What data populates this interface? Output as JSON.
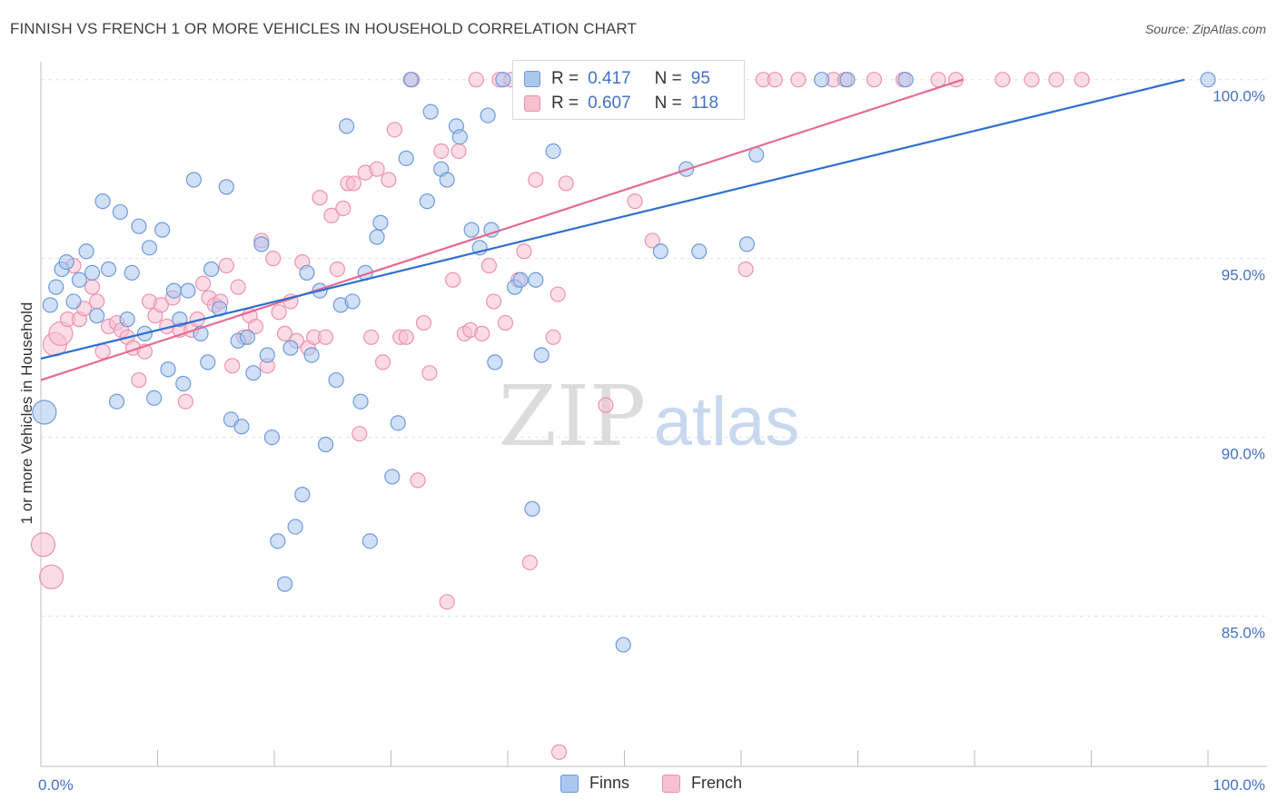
{
  "title": "FINNISH VS FRENCH 1 OR MORE VEHICLES IN HOUSEHOLD CORRELATION CHART",
  "source": "Source: ZipAtlas.com",
  "watermark": {
    "zip": "ZIP",
    "atlas": "atlas"
  },
  "legend": {
    "finns": {
      "r_label": "R =",
      "r_value": "0.417",
      "n_label": "N =",
      "n_value": "95"
    },
    "french": {
      "r_label": "R =",
      "r_value": "0.607",
      "n_label": "N =",
      "n_value": "118"
    }
  },
  "bottom_legend": {
    "finns": "Finns",
    "french": "French"
  },
  "colors": {
    "finns_fill": "#aac7f0",
    "finns_stroke": "#6f9bd8",
    "finns_line": "#2f6fcf",
    "french_fill": "#f7c0d1",
    "french_stroke": "#ec92b0",
    "french_line": "#e56a95",
    "axis_text": "#4472c4",
    "grid": "#e3e3e3"
  },
  "chart_data": {
    "type": "scatter",
    "title": "FINNISH VS FRENCH 1 OR MORE VEHICLES IN HOUSEHOLD CORRELATION CHART",
    "xlabel": "",
    "ylabel": "1 or more Vehicles in Household",
    "x_unit": "%",
    "xlim": [
      0,
      100
    ],
    "ylim": [
      80.8,
      100.5
    ],
    "x_tick_labels": [
      "0.0%",
      "100.0%"
    ],
    "y_ticks": [
      85,
      90,
      95,
      100
    ],
    "y_tick_labels": [
      "85.0%",
      "90.0%",
      "95.0%",
      "100.0%"
    ],
    "grid": true,
    "legend_position": "top-center",
    "series": [
      {
        "name": "Finns",
        "r": 0.417,
        "n": 95,
        "trend": {
          "x": [
            0,
            98
          ],
          "y": [
            92.2,
            100.0
          ]
        },
        "points": [
          {
            "x": 0.3,
            "y": 90.7,
            "big": true
          },
          {
            "x": 0.8,
            "y": 93.7
          },
          {
            "x": 1.3,
            "y": 94.2
          },
          {
            "x": 1.8,
            "y": 94.7
          },
          {
            "x": 2.2,
            "y": 94.9
          },
          {
            "x": 2.8,
            "y": 93.8
          },
          {
            "x": 3.3,
            "y": 94.4
          },
          {
            "x": 3.9,
            "y": 95.2
          },
          {
            "x": 4.4,
            "y": 94.6
          },
          {
            "x": 4.8,
            "y": 93.4
          },
          {
            "x": 5.3,
            "y": 96.6
          },
          {
            "x": 5.8,
            "y": 94.7
          },
          {
            "x": 6.5,
            "y": 91.0
          },
          {
            "x": 6.8,
            "y": 96.3
          },
          {
            "x": 7.4,
            "y": 93.3
          },
          {
            "x": 7.8,
            "y": 94.6
          },
          {
            "x": 8.4,
            "y": 95.9
          },
          {
            "x": 8.9,
            "y": 92.9
          },
          {
            "x": 9.3,
            "y": 95.3
          },
          {
            "x": 9.7,
            "y": 91.1
          },
          {
            "x": 10.4,
            "y": 95.8
          },
          {
            "x": 10.9,
            "y": 91.9
          },
          {
            "x": 11.4,
            "y": 94.1
          },
          {
            "x": 11.9,
            "y": 93.3
          },
          {
            "x": 12.2,
            "y": 91.5
          },
          {
            "x": 12.6,
            "y": 94.1
          },
          {
            "x": 13.1,
            "y": 97.2
          },
          {
            "x": 13.7,
            "y": 92.9
          },
          {
            "x": 14.3,
            "y": 92.1
          },
          {
            "x": 14.6,
            "y": 94.7
          },
          {
            "x": 15.3,
            "y": 93.6
          },
          {
            "x": 15.9,
            "y": 97.0
          },
          {
            "x": 16.3,
            "y": 90.5
          },
          {
            "x": 16.9,
            "y": 92.7
          },
          {
            "x": 17.2,
            "y": 90.3
          },
          {
            "x": 17.7,
            "y": 92.8
          },
          {
            "x": 18.2,
            "y": 91.8
          },
          {
            "x": 18.9,
            "y": 95.4
          },
          {
            "x": 19.4,
            "y": 92.3
          },
          {
            "x": 19.8,
            "y": 90.0
          },
          {
            "x": 20.3,
            "y": 87.1
          },
          {
            "x": 20.9,
            "y": 85.9
          },
          {
            "x": 21.4,
            "y": 92.5
          },
          {
            "x": 21.8,
            "y": 87.5
          },
          {
            "x": 22.4,
            "y": 88.4
          },
          {
            "x": 22.8,
            "y": 94.6
          },
          {
            "x": 23.2,
            "y": 92.3
          },
          {
            "x": 23.9,
            "y": 94.1
          },
          {
            "x": 24.4,
            "y": 89.8
          },
          {
            "x": 25.3,
            "y": 91.6
          },
          {
            "x": 25.7,
            "y": 93.7
          },
          {
            "x": 26.2,
            "y": 98.7
          },
          {
            "x": 26.7,
            "y": 93.8
          },
          {
            "x": 27.4,
            "y": 91.0
          },
          {
            "x": 27.8,
            "y": 94.6
          },
          {
            "x": 28.2,
            "y": 87.1
          },
          {
            "x": 28.8,
            "y": 95.6
          },
          {
            "x": 29.1,
            "y": 96.0
          },
          {
            "x": 30.1,
            "y": 88.9
          },
          {
            "x": 30.6,
            "y": 90.4
          },
          {
            "x": 31.3,
            "y": 97.8
          },
          {
            "x": 31.7,
            "y": 100.0
          },
          {
            "x": 33.1,
            "y": 96.6
          },
          {
            "x": 33.4,
            "y": 99.1
          },
          {
            "x": 34.3,
            "y": 97.5
          },
          {
            "x": 34.8,
            "y": 97.2
          },
          {
            "x": 35.6,
            "y": 98.7
          },
          {
            "x": 35.9,
            "y": 98.4
          },
          {
            "x": 36.9,
            "y": 95.8
          },
          {
            "x": 37.6,
            "y": 95.3
          },
          {
            "x": 38.3,
            "y": 99.0
          },
          {
            "x": 38.6,
            "y": 95.8
          },
          {
            "x": 38.9,
            "y": 92.1
          },
          {
            "x": 39.6,
            "y": 100.0
          },
          {
            "x": 40.6,
            "y": 94.2
          },
          {
            "x": 41.1,
            "y": 94.4
          },
          {
            "x": 42.1,
            "y": 88.0
          },
          {
            "x": 42.4,
            "y": 94.4
          },
          {
            "x": 42.9,
            "y": 92.3
          },
          {
            "x": 43.9,
            "y": 98.0
          },
          {
            "x": 44.5,
            "y": 100.0
          },
          {
            "x": 46.9,
            "y": 100.0
          },
          {
            "x": 49.1,
            "y": 100.0
          },
          {
            "x": 49.9,
            "y": 84.2
          },
          {
            "x": 50.4,
            "y": 100.0
          },
          {
            "x": 52.1,
            "y": 100.0
          },
          {
            "x": 53.1,
            "y": 95.2
          },
          {
            "x": 55.3,
            "y": 97.5
          },
          {
            "x": 56.4,
            "y": 95.2
          },
          {
            "x": 58.6,
            "y": 100.0
          },
          {
            "x": 60.5,
            "y": 95.4
          },
          {
            "x": 61.3,
            "y": 97.9
          },
          {
            "x": 66.9,
            "y": 100.0
          },
          {
            "x": 69.1,
            "y": 100.0
          },
          {
            "x": 74.1,
            "y": 100.0
          },
          {
            "x": 100.0,
            "y": 100.0
          }
        ]
      },
      {
        "name": "French",
        "r": 0.607,
        "n": 118,
        "trend": {
          "x": [
            0,
            79
          ],
          "y": [
            91.6,
            100.0
          ]
        },
        "points": [
          {
            "x": 0.2,
            "y": 87.0,
            "big": true
          },
          {
            "x": 0.9,
            "y": 86.1,
            "big": true
          },
          {
            "x": 1.2,
            "y": 92.6,
            "big": true
          },
          {
            "x": 1.7,
            "y": 92.9,
            "big": true
          },
          {
            "x": 2.3,
            "y": 93.3
          },
          {
            "x": 2.8,
            "y": 94.8
          },
          {
            "x": 3.3,
            "y": 93.3
          },
          {
            "x": 3.7,
            "y": 93.6
          },
          {
            "x": 4.4,
            "y": 94.2
          },
          {
            "x": 4.8,
            "y": 93.8
          },
          {
            "x": 5.3,
            "y": 92.4
          },
          {
            "x": 5.8,
            "y": 93.1
          },
          {
            "x": 6.5,
            "y": 93.2
          },
          {
            "x": 6.9,
            "y": 93.0
          },
          {
            "x": 7.4,
            "y": 92.8
          },
          {
            "x": 7.9,
            "y": 92.5
          },
          {
            "x": 8.4,
            "y": 91.6
          },
          {
            "x": 8.9,
            "y": 92.4
          },
          {
            "x": 9.3,
            "y": 93.8
          },
          {
            "x": 9.8,
            "y": 93.4
          },
          {
            "x": 10.3,
            "y": 93.7
          },
          {
            "x": 10.8,
            "y": 93.1
          },
          {
            "x": 11.3,
            "y": 93.9
          },
          {
            "x": 11.9,
            "y": 93.0
          },
          {
            "x": 12.4,
            "y": 91.0
          },
          {
            "x": 12.9,
            "y": 93.0
          },
          {
            "x": 13.4,
            "y": 93.3
          },
          {
            "x": 13.9,
            "y": 94.3
          },
          {
            "x": 14.4,
            "y": 93.9
          },
          {
            "x": 14.9,
            "y": 93.7
          },
          {
            "x": 15.4,
            "y": 93.8
          },
          {
            "x": 15.9,
            "y": 94.8
          },
          {
            "x": 16.4,
            "y": 92.0
          },
          {
            "x": 16.9,
            "y": 94.2
          },
          {
            "x": 17.4,
            "y": 92.8
          },
          {
            "x": 17.9,
            "y": 93.4
          },
          {
            "x": 18.4,
            "y": 93.1
          },
          {
            "x": 18.9,
            "y": 95.5
          },
          {
            "x": 19.4,
            "y": 92.0
          },
          {
            "x": 19.9,
            "y": 95.0
          },
          {
            "x": 20.4,
            "y": 93.5
          },
          {
            "x": 20.9,
            "y": 92.9
          },
          {
            "x": 21.4,
            "y": 93.8
          },
          {
            "x": 21.9,
            "y": 92.7
          },
          {
            "x": 22.4,
            "y": 94.9
          },
          {
            "x": 22.9,
            "y": 92.5
          },
          {
            "x": 23.4,
            "y": 92.8
          },
          {
            "x": 23.9,
            "y": 96.7
          },
          {
            "x": 24.4,
            "y": 92.8
          },
          {
            "x": 24.9,
            "y": 96.2
          },
          {
            "x": 25.4,
            "y": 94.7
          },
          {
            "x": 25.9,
            "y": 96.4
          },
          {
            "x": 26.3,
            "y": 97.1
          },
          {
            "x": 26.8,
            "y": 97.1
          },
          {
            "x": 27.3,
            "y": 90.1
          },
          {
            "x": 27.8,
            "y": 97.4
          },
          {
            "x": 28.3,
            "y": 92.8
          },
          {
            "x": 28.8,
            "y": 97.5
          },
          {
            "x": 29.3,
            "y": 92.1
          },
          {
            "x": 29.8,
            "y": 97.2
          },
          {
            "x": 30.3,
            "y": 98.6
          },
          {
            "x": 30.8,
            "y": 92.8
          },
          {
            "x": 31.3,
            "y": 92.8
          },
          {
            "x": 31.8,
            "y": 100.0
          },
          {
            "x": 32.3,
            "y": 88.8
          },
          {
            "x": 32.8,
            "y": 93.2
          },
          {
            "x": 33.3,
            "y": 91.8
          },
          {
            "x": 34.3,
            "y": 98.0
          },
          {
            "x": 34.8,
            "y": 85.4
          },
          {
            "x": 35.3,
            "y": 94.4
          },
          {
            "x": 35.8,
            "y": 98.0
          },
          {
            "x": 36.3,
            "y": 92.9
          },
          {
            "x": 36.8,
            "y": 93.0
          },
          {
            "x": 37.3,
            "y": 100.0
          },
          {
            "x": 37.8,
            "y": 92.9
          },
          {
            "x": 38.4,
            "y": 94.8
          },
          {
            "x": 38.8,
            "y": 93.8
          },
          {
            "x": 39.3,
            "y": 100.0
          },
          {
            "x": 39.8,
            "y": 93.2
          },
          {
            "x": 40.3,
            "y": 100.0
          },
          {
            "x": 40.9,
            "y": 94.4
          },
          {
            "x": 41.4,
            "y": 95.2
          },
          {
            "x": 41.9,
            "y": 86.5
          },
          {
            "x": 42.4,
            "y": 97.2
          },
          {
            "x": 43.4,
            "y": 100.0
          },
          {
            "x": 43.9,
            "y": 92.8
          },
          {
            "x": 44.3,
            "y": 94.0
          },
          {
            "x": 44.4,
            "y": 81.2
          },
          {
            "x": 45.0,
            "y": 97.1
          },
          {
            "x": 46.4,
            "y": 100.0
          },
          {
            "x": 47.9,
            "y": 100.0
          },
          {
            "x": 48.4,
            "y": 90.9
          },
          {
            "x": 49.9,
            "y": 100.0
          },
          {
            "x": 50.9,
            "y": 96.6
          },
          {
            "x": 51.9,
            "y": 100.0
          },
          {
            "x": 52.4,
            "y": 95.5
          },
          {
            "x": 53.9,
            "y": 100.0
          },
          {
            "x": 56.4,
            "y": 100.0
          },
          {
            "x": 57.9,
            "y": 100.0
          },
          {
            "x": 59.4,
            "y": 100.0
          },
          {
            "x": 60.4,
            "y": 94.7
          },
          {
            "x": 61.9,
            "y": 100.0
          },
          {
            "x": 62.9,
            "y": 100.0
          },
          {
            "x": 64.9,
            "y": 100.0
          },
          {
            "x": 67.9,
            "y": 100.0
          },
          {
            "x": 68.9,
            "y": 100.0
          },
          {
            "x": 71.4,
            "y": 100.0
          },
          {
            "x": 73.9,
            "y": 100.0
          },
          {
            "x": 76.9,
            "y": 100.0
          },
          {
            "x": 78.4,
            "y": 100.0
          },
          {
            "x": 82.4,
            "y": 100.0
          },
          {
            "x": 84.9,
            "y": 100.0
          },
          {
            "x": 87.0,
            "y": 100.0
          },
          {
            "x": 89.2,
            "y": 100.0
          }
        ]
      }
    ]
  }
}
